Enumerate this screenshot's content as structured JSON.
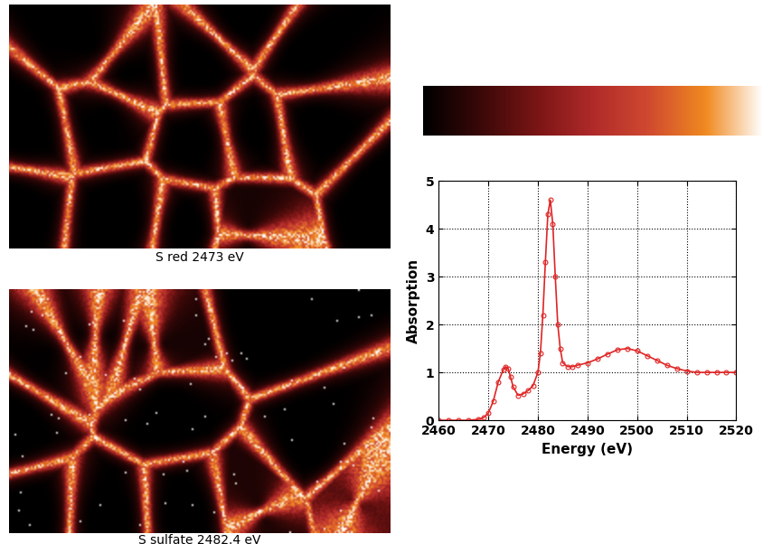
{
  "images": [
    {
      "caption": "S red 2473 eV"
    },
    {
      "caption": "S sulfate 2482.4 eV"
    }
  ],
  "chart_data": {
    "type": "line",
    "x_label": "Energy (eV)",
    "y_label": "Absorption",
    "x": [
      2460,
      2462,
      2464,
      2466,
      2468,
      2469,
      2470,
      2471,
      2472,
      2473,
      2473.5,
      2474,
      2474.5,
      2475,
      2476,
      2477,
      2478,
      2479,
      2480,
      2480.5,
      2481,
      2481.5,
      2482,
      2482.5,
      2483,
      2483.5,
      2484,
      2484.5,
      2485,
      2486,
      2487,
      2488,
      2490,
      2492,
      2494,
      2496,
      2498,
      2500,
      2502,
      2504,
      2506,
      2508,
      2510,
      2512,
      2514,
      2516,
      2518,
      2520
    ],
    "values": [
      0,
      0,
      0,
      0,
      0.02,
      0.05,
      0.15,
      0.4,
      0.8,
      1.05,
      1.12,
      1.08,
      0.9,
      0.7,
      0.52,
      0.55,
      0.62,
      0.72,
      1.0,
      1.4,
      2.2,
      3.3,
      4.3,
      4.6,
      4.1,
      3.0,
      2.0,
      1.5,
      1.2,
      1.12,
      1.12,
      1.15,
      1.2,
      1.28,
      1.38,
      1.47,
      1.5,
      1.45,
      1.35,
      1.25,
      1.15,
      1.08,
      1.03,
      1.0,
      1.0,
      1.0,
      1.0,
      1.0
    ],
    "color": "#e02424",
    "marker": "o",
    "line_style": "solid",
    "xlim": [
      2460,
      2520
    ],
    "xticks": [
      2460,
      2470,
      2480,
      2490,
      2500,
      2510,
      2520
    ],
    "ylim": [
      0,
      5
    ],
    "yticks": [
      0,
      1,
      2,
      3,
      4,
      5
    ],
    "grid": true
  }
}
